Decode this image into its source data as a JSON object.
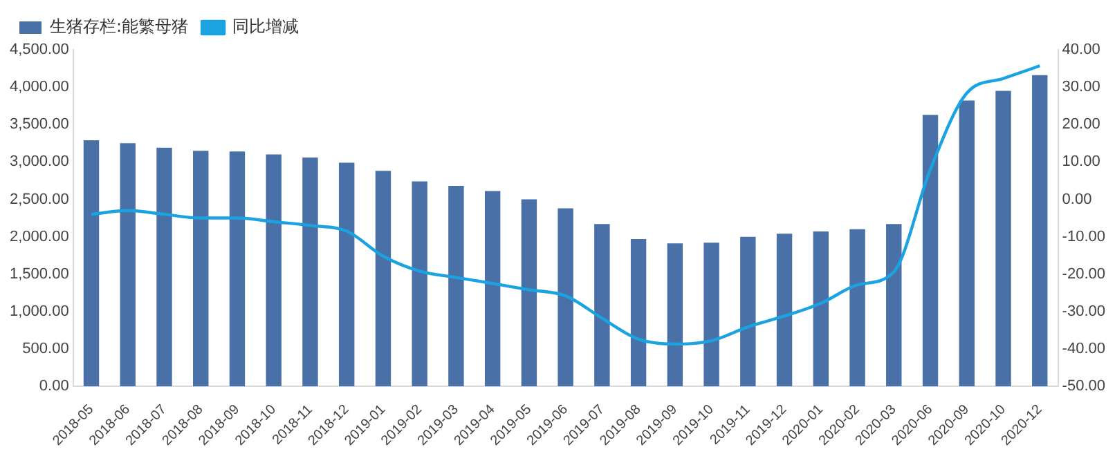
{
  "chart_data": {
    "type": "bar",
    "categories": [
      "2018-05",
      "2018-06",
      "2018-07",
      "2018-08",
      "2018-09",
      "2018-10",
      "2018-11",
      "2018-12",
      "2019-01",
      "2019-02",
      "2019-03",
      "2019-04",
      "2019-05",
      "2019-06",
      "2019-07",
      "2019-08",
      "2019-09",
      "2019-10",
      "2019-11",
      "2019-12",
      "2020-01",
      "2020-02",
      "2020-03",
      "2020-06",
      "2020-09",
      "2020-10",
      "2020-12"
    ],
    "series": [
      {
        "name": "生猪存栏:能繁母猪",
        "color": "#4a70a8",
        "values": [
          3290,
          3250,
          3190,
          3150,
          3140,
          3100,
          3060,
          2990,
          2880,
          2740,
          2680,
          2610,
          2500,
          2380,
          2170,
          1970,
          1910,
          1920,
          2000,
          2040,
          2070,
          2100,
          2170,
          3630,
          3820,
          3950,
          4160
        ]
      },
      {
        "name": "同比增减",
        "type": "line",
        "axis": "y2",
        "color": "#1aa3e0",
        "values": [
          -4,
          -3,
          -4,
          -5,
          -5,
          -6,
          -7,
          -8.5,
          -15.2,
          -19.2,
          -20.9,
          -22.5,
          -24.2,
          -25.8,
          -31.8,
          -37.4,
          -38.7,
          -37.8,
          -34.1,
          -31.2,
          -27.8,
          -22.9,
          -19.4,
          8,
          28.4,
          32.3,
          35.7
        ]
      }
    ],
    "ylim": [
      0,
      4500
    ],
    "yticks": [
      {
        "value": 0,
        "label": "0.00"
      },
      {
        "value": 500,
        "label": "500.00"
      },
      {
        "value": 1000,
        "label": "1,000.00"
      },
      {
        "value": 1500,
        "label": "1,500.00"
      },
      {
        "value": 2000,
        "label": "2,000.00"
      },
      {
        "value": 2500,
        "label": "2,500.00"
      },
      {
        "value": 3000,
        "label": "3,000.00"
      },
      {
        "value": 3500,
        "label": "3,500.00"
      },
      {
        "value": 4000,
        "label": "4,000.00"
      },
      {
        "value": 4500,
        "label": "4,500.00"
      }
    ],
    "y2lim": [
      -50,
      40
    ],
    "y2ticks": [
      {
        "value": -50,
        "label": "-50.00"
      },
      {
        "value": -40,
        "label": "-40.00"
      },
      {
        "value": -30,
        "label": "-30.00"
      },
      {
        "value": -20,
        "label": "-20.00"
      },
      {
        "value": -10,
        "label": "-10.00"
      },
      {
        "value": 0,
        "label": "0.00"
      },
      {
        "value": 10,
        "label": "10.00"
      },
      {
        "value": 20,
        "label": "20.00"
      },
      {
        "value": 30,
        "label": "30.00"
      },
      {
        "value": 40,
        "label": "40.00"
      }
    ],
    "legend": "top left",
    "grid": false,
    "marker": "none"
  }
}
